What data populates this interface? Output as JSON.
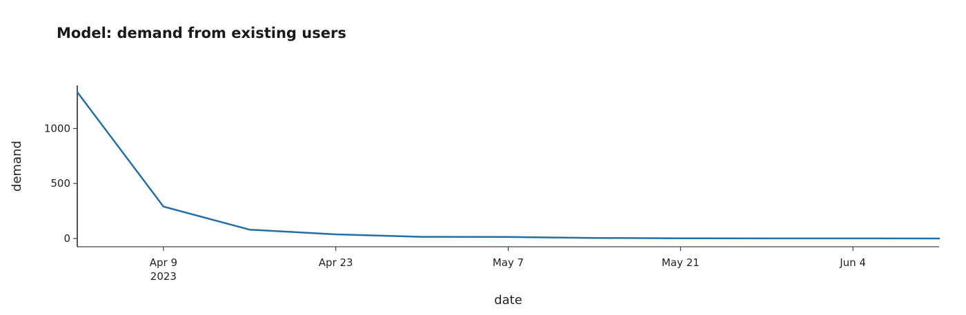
{
  "title": {
    "prefix": "Model:",
    "text": "demand from existing users"
  },
  "chart_data": {
    "type": "line",
    "title": "Model: demand from existing users",
    "xlabel": "date",
    "ylabel": "demand",
    "x_type": "date",
    "xlim": [
      "2023-04-02",
      "2023-06-11"
    ],
    "ylim": [
      -75,
      1390
    ],
    "x_ticks": [
      {
        "date": "2023-04-09",
        "label": "Apr 9",
        "sublabel": "2023"
      },
      {
        "date": "2023-04-23",
        "label": "Apr 23",
        "sublabel": ""
      },
      {
        "date": "2023-05-07",
        "label": "May 7",
        "sublabel": ""
      },
      {
        "date": "2023-05-21",
        "label": "May 21",
        "sublabel": ""
      },
      {
        "date": "2023-06-04",
        "label": "Jun 4",
        "sublabel": ""
      }
    ],
    "y_ticks": [
      0,
      500,
      1000
    ],
    "grid": false,
    "series": [
      {
        "color": "#1f6fa8",
        "x": [
          "2023-04-02",
          "2023-04-09",
          "2023-04-16",
          "2023-04-23",
          "2023-04-30",
          "2023-05-07",
          "2023-05-14",
          "2023-05-21",
          "2023-05-28",
          "2023-06-04",
          "2023-06-11"
        ],
        "y": [
          1330,
          290,
          80,
          38,
          15,
          14,
          5,
          2,
          1,
          1,
          0
        ]
      }
    ]
  }
}
